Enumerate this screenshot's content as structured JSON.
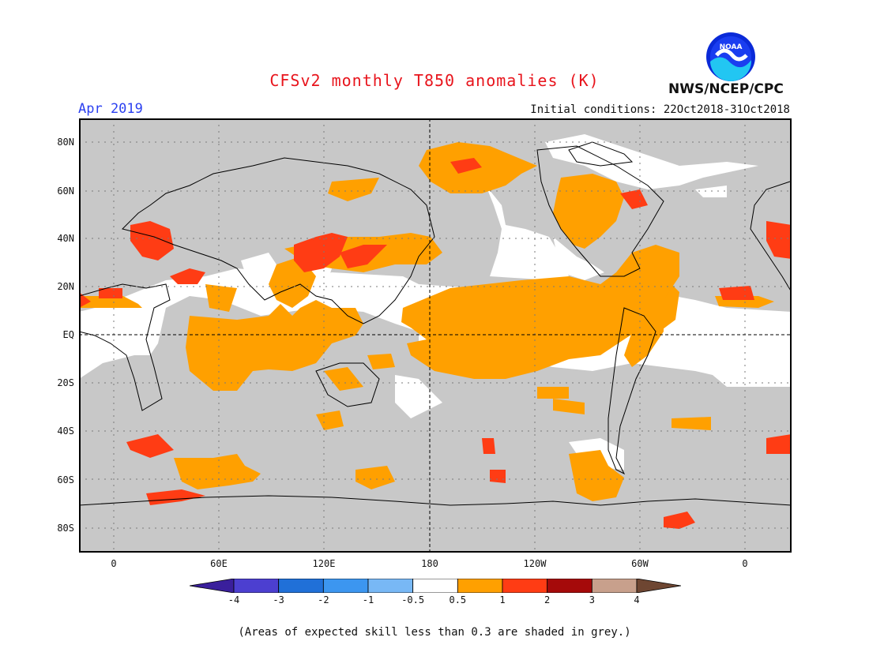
{
  "title": "CFSv2 monthly T850 anomalies (K)",
  "month": "Apr 2019",
  "initial_conditions": "Initial conditions: 22Oct2018-31Oct2018",
  "agency": "NWS/NCEP/CPC",
  "logo": {
    "icon": "noaa-logo-icon",
    "text": "NOAA"
  },
  "footnote": "(Areas of expected skill less than 0.3 are shaded in grey.)",
  "lat_labels": [
    "80N",
    "60N",
    "40N",
    "20N",
    "EQ",
    "20S",
    "40S",
    "60S",
    "80S"
  ],
  "lon_labels": [
    "0",
    "60E",
    "120E",
    "180",
    "120W",
    "60W",
    "0"
  ],
  "colorbar": {
    "labels": [
      "-4",
      "-3",
      "-2",
      "-1",
      "-0.5",
      "0.5",
      "1",
      "2",
      "3",
      "4"
    ],
    "colors": [
      "#3a1f9c",
      "#4c3fd0",
      "#2070d8",
      "#3c96f0",
      "#78b8f5",
      "#ffffff",
      "#ffa000",
      "#ff3c14",
      "#a50a0a",
      "#c8a08c",
      "#6e4632"
    ]
  },
  "colors": {
    "grey_low_skill": "#c8c8c8",
    "near_normal": "#ffffff",
    "anomaly_0_5_to_1": "#ffa000",
    "anomaly_1_to_2": "#ff3c14",
    "coastline": "#000000"
  }
}
